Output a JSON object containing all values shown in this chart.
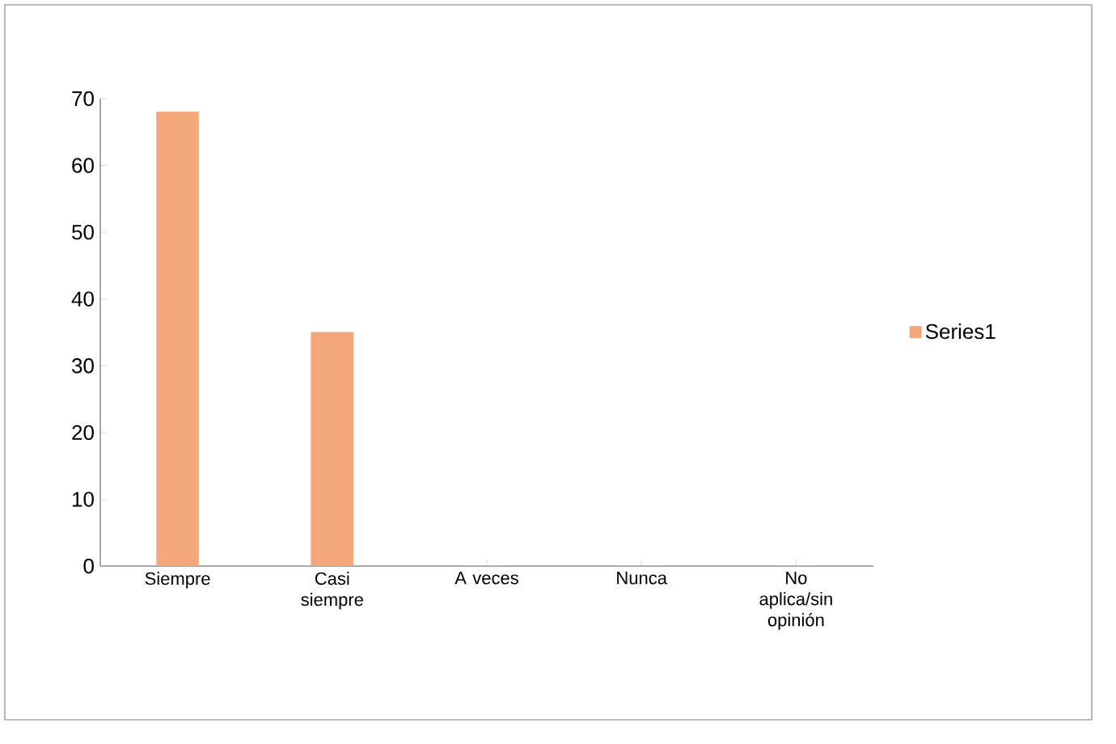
{
  "chart_data": {
    "type": "bar",
    "categories": [
      "Siempre",
      "Casi siempre",
      "A veces",
      "Nunca",
      "No aplica/sin opinión"
    ],
    "series": [
      {
        "name": "Series1",
        "color": "#f4a77a",
        "values": [
          68,
          35,
          0,
          0,
          0
        ]
      }
    ],
    "ylim": [
      0,
      70
    ],
    "yticks": [
      0,
      10,
      20,
      30,
      40,
      50,
      60,
      70
    ],
    "legend": "right"
  }
}
